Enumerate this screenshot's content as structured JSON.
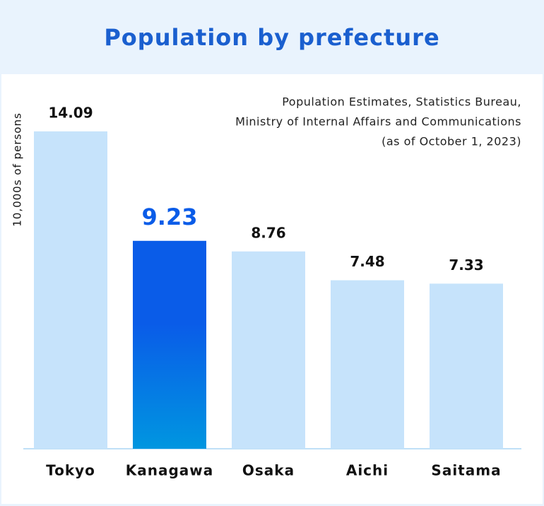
{
  "chart_data": {
    "type": "bar",
    "title": "Population by prefecture",
    "y_label": "10,000s of persons",
    "source": [
      "Population Estimates, Statistics Bureau,",
      "Ministry of Internal Affairs and Communications",
      "(as of October 1, 2023)"
    ],
    "categories": [
      "Tokyo",
      "Kanagawa",
      "Osaka",
      "Aichi",
      "Saitama"
    ],
    "values": [
      14.09,
      9.23,
      8.76,
      7.48,
      7.33
    ],
    "color": "#c6e3fb",
    "highlight": "Kanagawa",
    "highlight_color": "#0a5ce8",
    "ylim": [
      0,
      16
    ]
  }
}
